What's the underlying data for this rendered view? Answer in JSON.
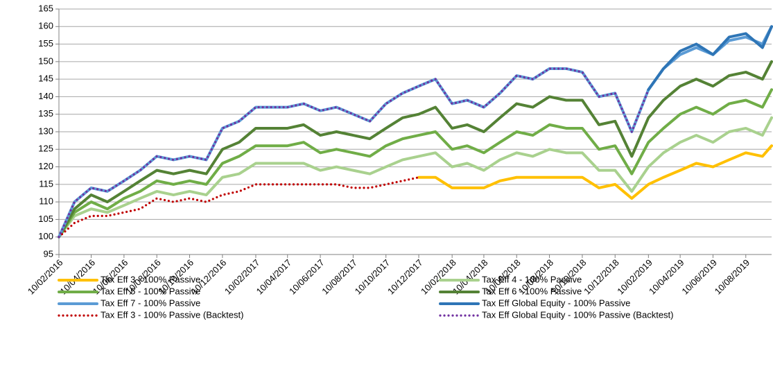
{
  "chart_data": {
    "type": "line",
    "x": [
      "2016-02-10",
      "2016-03-10",
      "2016-04-10",
      "2016-05-10",
      "2016-06-10",
      "2016-07-10",
      "2016-08-10",
      "2016-09-10",
      "2016-10-10",
      "2016-11-10",
      "2016-12-10",
      "2017-01-10",
      "2017-02-10",
      "2017-03-10",
      "2017-04-10",
      "2017-05-10",
      "2017-06-10",
      "2017-07-10",
      "2017-08-10",
      "2017-09-10",
      "2017-10-10",
      "2017-11-10",
      "2017-12-10",
      "2018-01-10",
      "2018-02-10",
      "2018-03-10",
      "2018-04-10",
      "2018-05-10",
      "2018-06-10",
      "2018-07-10",
      "2018-08-10",
      "2018-09-10",
      "2018-10-10",
      "2018-11-10",
      "2018-12-10",
      "2019-01-10",
      "2019-02-10",
      "2019-03-10",
      "2019-04-10",
      "2019-05-10",
      "2019-06-10",
      "2019-07-10",
      "2019-08-10",
      "2019-09-10",
      "2019-09-27"
    ],
    "series": [
      {
        "name": "Tax Eff 3 - 100% Passive",
        "color": "#ffc000",
        "style": "solid",
        "values": [
          null,
          null,
          null,
          null,
          null,
          null,
          null,
          null,
          null,
          null,
          null,
          null,
          null,
          null,
          null,
          null,
          null,
          null,
          null,
          null,
          null,
          null,
          117,
          117,
          114,
          114,
          114,
          116,
          117,
          117,
          117,
          117,
          117,
          114,
          115,
          111,
          115,
          117,
          119,
          121,
          120,
          122,
          124,
          123,
          126
        ]
      },
      {
        "name": "Tax Eff 4 - 100% Passive",
        "color": "#a9d18e",
        "style": "solid",
        "values": [
          100,
          106,
          108,
          107,
          109,
          111,
          113,
          112,
          113,
          112,
          117,
          118,
          121,
          121,
          121,
          121,
          119,
          120,
          119,
          118,
          120,
          122,
          123,
          124,
          120,
          121,
          119,
          122,
          124,
          123,
          125,
          124,
          124,
          119,
          119,
          113,
          120,
          124,
          127,
          129,
          127,
          130,
          131,
          129,
          134
        ]
      },
      {
        "name": "Tax Eff 5 - 100% Passive",
        "color": "#70ad47",
        "style": "solid",
        "values": [
          100,
          107,
          110,
          108,
          111,
          113,
          116,
          115,
          116,
          115,
          121,
          123,
          126,
          126,
          126,
          127,
          124,
          125,
          124,
          123,
          126,
          128,
          129,
          130,
          125,
          126,
          124,
          127,
          130,
          129,
          132,
          131,
          131,
          125,
          126,
          118,
          127,
          131,
          135,
          137,
          135,
          138,
          139,
          137,
          142
        ]
      },
      {
        "name": "Tax Eff 6 - 100% Passive",
        "color": "#548235",
        "style": "solid",
        "values": [
          100,
          108,
          112,
          110,
          113,
          116,
          119,
          118,
          119,
          118,
          125,
          127,
          131,
          131,
          131,
          132,
          129,
          130,
          129,
          128,
          131,
          134,
          135,
          137,
          131,
          132,
          130,
          134,
          138,
          137,
          140,
          139,
          139,
          132,
          133,
          123,
          134,
          139,
          143,
          145,
          143,
          146,
          147,
          145,
          150
        ]
      },
      {
        "name": "Tax Eff 7 - 100% Passive",
        "color": "#5b9bd5",
        "style": "solid",
        "values": [
          100,
          110,
          114,
          113,
          116,
          119,
          123,
          122,
          123,
          122,
          131,
          133,
          137,
          137,
          137,
          138,
          136,
          137,
          135,
          133,
          138,
          141,
          143,
          145,
          138,
          139,
          137,
          141,
          146,
          145,
          148,
          148,
          147,
          140,
          141,
          130,
          142,
          148,
          152,
          154,
          152,
          156,
          157,
          155,
          160
        ]
      },
      {
        "name": "Tax Eff Global Equity - 100% Passive",
        "color": "#2e75b6",
        "style": "solid",
        "values": [
          null,
          null,
          null,
          null,
          null,
          null,
          null,
          null,
          null,
          null,
          null,
          null,
          null,
          null,
          null,
          null,
          null,
          null,
          null,
          null,
          null,
          null,
          null,
          null,
          null,
          null,
          null,
          null,
          null,
          null,
          null,
          null,
          null,
          null,
          null,
          null,
          142,
          148,
          153,
          155,
          152,
          157,
          158,
          154,
          160
        ]
      },
      {
        "name": "Tax Eff 3 - 100% Passive (Backtest)",
        "color": "#c00000",
        "style": "dotted",
        "values": [
          100,
          104,
          106,
          106,
          107,
          108,
          111,
          110,
          111,
          110,
          112,
          113,
          115,
          115,
          115,
          115,
          115,
          115,
          114,
          114,
          115,
          116,
          117,
          null,
          null,
          null,
          null,
          null,
          null,
          null,
          null,
          null,
          null,
          null,
          null,
          null,
          null,
          null,
          null,
          null,
          null,
          null,
          null,
          null,
          null
        ]
      },
      {
        "name": "Tax Eff Global Equity - 100% Passive (Backtest)",
        "color": "#7030a0",
        "style": "dotted",
        "values": [
          100,
          110,
          114,
          113,
          116,
          119,
          123,
          122,
          123,
          122,
          131,
          133,
          137,
          137,
          137,
          138,
          136,
          137,
          135,
          133,
          138,
          141,
          143,
          145,
          138,
          139,
          137,
          141,
          146,
          145,
          148,
          148,
          147,
          140,
          141,
          130,
          142,
          null,
          null,
          null,
          null,
          null,
          null,
          null,
          null
        ]
      }
    ],
    "xlim": [
      "2016-02-10",
      "2019-09-27"
    ],
    "xticks": [
      {
        "value": "2016-02-10",
        "label": "10/02/2016"
      },
      {
        "value": "2016-04-10",
        "label": "10/04/2016"
      },
      {
        "value": "2016-06-10",
        "label": "10/06/2016"
      },
      {
        "value": "2016-08-10",
        "label": "10/08/2016"
      },
      {
        "value": "2016-10-10",
        "label": "10/10/2016"
      },
      {
        "value": "2016-12-10",
        "label": "10/12/2016"
      },
      {
        "value": "2017-02-10",
        "label": "10/02/2017"
      },
      {
        "value": "2017-04-10",
        "label": "10/04/2017"
      },
      {
        "value": "2017-06-10",
        "label": "10/06/2017"
      },
      {
        "value": "2017-08-10",
        "label": "10/08/2017"
      },
      {
        "value": "2017-10-10",
        "label": "10/10/2017"
      },
      {
        "value": "2017-12-10",
        "label": "10/12/2017"
      },
      {
        "value": "2018-02-10",
        "label": "10/02/2018"
      },
      {
        "value": "2018-04-10",
        "label": "10/04/2018"
      },
      {
        "value": "2018-06-10",
        "label": "10/06/2018"
      },
      {
        "value": "2018-08-10",
        "label": "10/08/2018"
      },
      {
        "value": "2018-10-10",
        "label": "10/10/2018"
      },
      {
        "value": "2018-12-10",
        "label": "10/12/2018"
      },
      {
        "value": "2019-02-10",
        "label": "10/02/2019"
      },
      {
        "value": "2019-04-10",
        "label": "10/04/2019"
      },
      {
        "value": "2019-06-10",
        "label": "10/06/2019"
      },
      {
        "value": "2019-08-10",
        "label": "10/08/2019"
      }
    ],
    "ylim": [
      95,
      165
    ],
    "yticks": [
      95,
      100,
      105,
      110,
      115,
      120,
      125,
      130,
      135,
      140,
      145,
      150,
      155,
      160,
      165
    ],
    "grid": true,
    "legend": "bottom"
  }
}
